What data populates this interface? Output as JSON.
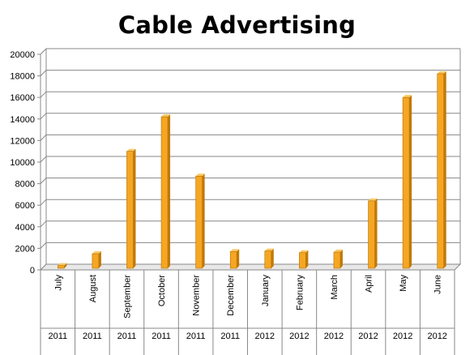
{
  "chart_data": {
    "type": "bar",
    "title": "Cable Advertising",
    "categories": [
      "July",
      "August",
      "September",
      "October",
      "November",
      "December",
      "January",
      "February",
      "March",
      "April",
      "May",
      "June"
    ],
    "years": [
      "2011",
      "2011",
      "2011",
      "2011",
      "2011",
      "2011",
      "2012",
      "2012",
      "2012",
      "2012",
      "2012",
      "2012"
    ],
    "values": [
      400,
      1500,
      11000,
      14200,
      8700,
      1700,
      1750,
      1600,
      1650,
      6400,
      16000,
      18200
    ],
    "ylim": [
      0,
      20000
    ],
    "yticks": [
      0,
      2000,
      4000,
      6000,
      8000,
      10000,
      12000,
      14000,
      16000,
      18000,
      20000
    ],
    "grid": true,
    "legend": "none",
    "bar_color": "#F5A623",
    "bar_side_color": "#C07A0A",
    "bar_top_color": "#FAC860"
  }
}
